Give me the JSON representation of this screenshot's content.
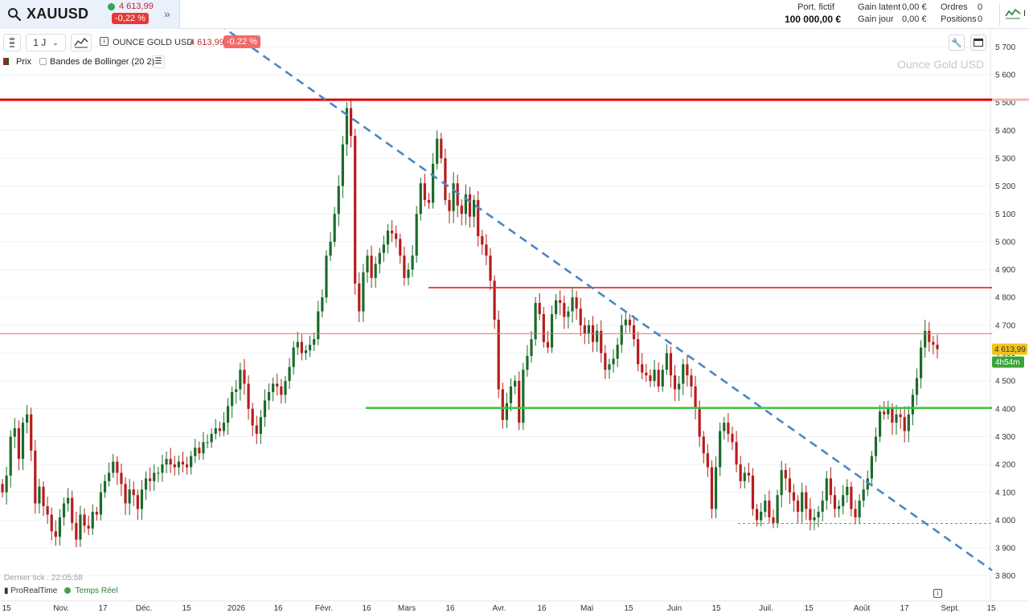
{
  "header": {
    "symbol": "XAUUSD",
    "price": "4 613,99",
    "change": "-0,22 %",
    "account": {
      "portfolio_label": "Port. fictif",
      "portfolio_value": "100 000,00 €",
      "latent_gain_label": "Gain latent",
      "latent_gain_value": "0,00 €",
      "day_gain_label": "Gain jour",
      "day_gain_value": "0,00 €",
      "orders_label": "Ordres",
      "orders_value": "0",
      "positions_label": "Positions",
      "positions_value": "0",
      "indicator_letter": "I"
    }
  },
  "toolbar": {
    "timeframe": "1 J",
    "instrument_name": "OUNCE GOLD USD",
    "instrument_price": "4 613,99",
    "instrument_change": "-0.22 %",
    "legend_price": "Prix",
    "legend_bollinger": "Bandes de Bollinger (20 2)"
  },
  "watermark": "Ounce Gold USD",
  "footer": {
    "last_tick": "Dernier tick : 22:05:58",
    "provider": "ProRealTime",
    "realtime": "Temps Réel"
  },
  "colors": {
    "up": "#1b6b2a",
    "down": "#b71c1c",
    "trendline": "#4a86c5",
    "resistance": "#e00000",
    "support": "#3cc43c",
    "price_tag": "#f0c419",
    "timer_tag": "#3aa53a"
  },
  "icons": [
    "search-icon",
    "expand-icon",
    "indicator-icon",
    "chart-type-icon",
    "info-icon",
    "list-icon",
    "wrench-icon",
    "window-icon"
  ],
  "chart_data": {
    "type": "candlestick",
    "title": "OUNCE GOLD USD",
    "timeframe": "1 J",
    "y_ticks": [
      3800,
      3900,
      4000,
      4100,
      4200,
      4300,
      4400,
      4500,
      4600,
      4700,
      4800,
      4900,
      5000,
      5100,
      5200,
      5300,
      5400,
      5500,
      5600,
      5700
    ],
    "y_tick_labels": [
      "3 800",
      "3 900",
      "4 000",
      "4 100",
      "4 200",
      "4 300",
      "4 400",
      "4 500",
      "4 600",
      "4 700",
      "4 800",
      "4 900",
      "5 000",
      "5 100",
      "5 200",
      "5 300",
      "5 400",
      "5 500",
      "5 600",
      "5 700"
    ],
    "ylim": [
      3770,
      5780
    ],
    "x_labels": [
      "15",
      "Nov.",
      "17",
      "Déc.",
      "15",
      "2026",
      "16",
      "Févr.",
      "16",
      "Mars",
      "16",
      "Avr.",
      "16",
      "Mai",
      "15",
      "Juin",
      "15",
      "Juil.",
      "15",
      "Août",
      "17",
      "Sept.",
      "15"
    ],
    "last_price": "4 613,99",
    "countdown": "4h54m",
    "series": [
      {
        "name": "Prix",
        "values": [
          4100,
          4160,
          4300,
          4330,
          4220,
          4350,
          4380,
          4250,
          4060,
          4120,
          4050,
          4020,
          3960,
          3940,
          4010,
          4060,
          4080,
          3990,
          3930,
          4020,
          3980,
          3970,
          4030,
          4020,
          4100,
          4140,
          4170,
          4210,
          4170,
          4130,
          4060,
          4110,
          4090,
          4040,
          4110,
          4150,
          4140,
          4170,
          4170,
          4200,
          4220,
          4200,
          4190,
          4210,
          4200,
          4190,
          4230,
          4260,
          4240,
          4280,
          4280,
          4310,
          4330,
          4320,
          4350,
          4410,
          4460,
          4470,
          4540,
          4490,
          4400,
          4340,
          4310,
          4370,
          4430,
          4460,
          4490,
          4480,
          4450,
          4500,
          4550,
          4620,
          4640,
          4600,
          4610,
          4630,
          4650,
          4750,
          4800,
          4950,
          5000,
          5100,
          5200,
          5350,
          5480,
          5380,
          4850,
          4750,
          4890,
          4950,
          4870,
          4920,
          4960,
          4990,
          5040,
          5030,
          5010,
          4950,
          4870,
          4900,
          4950,
          5100,
          5210,
          5150,
          5140,
          5280,
          5370,
          5300,
          5150,
          5110,
          5210,
          5130,
          5100,
          5170,
          5090,
          5150,
          5020,
          4990,
          4950,
          4860,
          4720,
          4470,
          4360,
          4420,
          4480,
          4500,
          4350,
          4540,
          4590,
          4650,
          4780,
          4740,
          4640,
          4620,
          4740,
          4790,
          4780,
          4730,
          4750,
          4800,
          4760,
          4700,
          4670,
          4700,
          4640,
          4680,
          4600,
          4540,
          4560,
          4580,
          4630,
          4700,
          4720,
          4700,
          4650,
          4560,
          4530,
          4520,
          4500,
          4540,
          4480,
          4540,
          4600,
          4520,
          4470,
          4490,
          4560,
          4520,
          4480,
          4400,
          4300,
          4240,
          4190,
          4040,
          4190,
          4320,
          4350,
          4310,
          4280,
          4200,
          4140,
          4170,
          4160,
          4040,
          4000,
          4030,
          4070,
          4010,
          3990,
          4090,
          4180,
          4150,
          4100,
          4070,
          4030,
          4100,
          4040,
          4000,
          4010,
          4030,
          4070,
          4150,
          4090,
          4040,
          4050,
          4090,
          4120,
          4040,
          4010,
          4070,
          4110,
          4150,
          4230,
          4300,
          4390,
          4380,
          4400,
          4350,
          4380,
          4370,
          4320,
          4380,
          4450,
          4510,
          4620,
          4680,
          4640,
          4630,
          4614
        ]
      }
    ],
    "annotations": {
      "horizontal_levels": [
        5510,
        4835,
        4670,
        4403,
        3988
      ],
      "trendline_from": {
        "date": "Oct 2025",
        "value": 5810
      },
      "trendline_to": {
        "date": "Sept 2026",
        "value": 3820
      }
    }
  }
}
